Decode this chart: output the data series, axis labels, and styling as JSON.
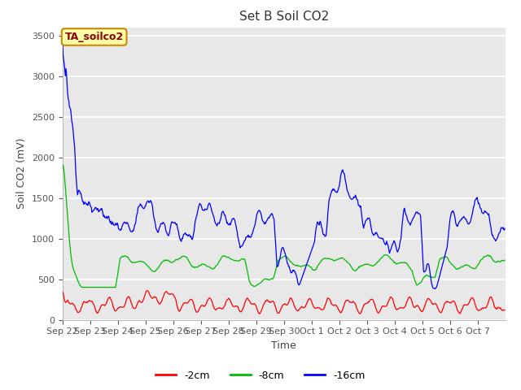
{
  "title": "Set B Soil CO2",
  "ylabel": "Soil CO2 (mV)",
  "xlabel": "Time",
  "annotation": "TA_soilco2",
  "ylim": [
    0,
    3600
  ],
  "yticks": [
    0,
    500,
    1000,
    1500,
    2000,
    2500,
    3000,
    3500
  ],
  "xtick_labels": [
    "Sep 22",
    "Sep 23",
    "Sep 24",
    "Sep 25",
    "Sep 26",
    "Sep 27",
    "Sep 28",
    "Sep 29",
    "Sep 30",
    "Oct 1",
    "Oct 2",
    "Oct 3",
    "Oct 4",
    "Oct 5",
    "Oct 6",
    "Oct 7"
  ],
  "line_colors": [
    "#ff0000",
    "#00bb00",
    "#0000ff"
  ],
  "line_labels": [
    "-2cm",
    "-8cm",
    "-16cm"
  ],
  "bg_color": "#e8e8e8",
  "title_fontsize": 11,
  "axis_label_fontsize": 9,
  "tick_fontsize": 8,
  "annot_fontsize": 9,
  "legend_fontsize": 9
}
